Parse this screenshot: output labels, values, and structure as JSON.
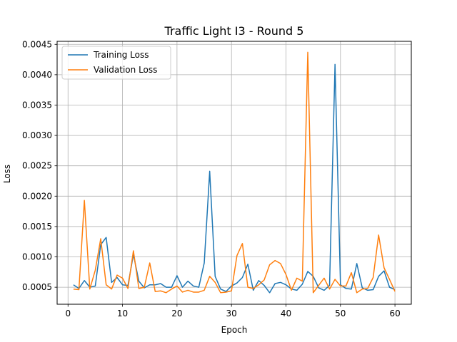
{
  "chart_data": {
    "type": "line",
    "title": "Traffic Light I3 - Round 5",
    "xlabel": "Epoch",
    "ylabel": "Loss",
    "xlim": [
      -2,
      63
    ],
    "ylim": [
      0.00022,
      0.00455
    ],
    "x_ticks": [
      0,
      10,
      20,
      30,
      40,
      50,
      60
    ],
    "y_ticks": [
      0.0005,
      0.001,
      0.0015,
      0.002,
      0.0025,
      0.003,
      0.0035,
      0.004,
      0.0045
    ],
    "y_tick_labels": [
      "0.0005",
      "0.0010",
      "0.0015",
      "0.0020",
      "0.0025",
      "0.0030",
      "0.0035",
      "0.0040",
      "0.0045"
    ],
    "grid": true,
    "legend_position": "top-left",
    "x": [
      1,
      2,
      3,
      4,
      5,
      6,
      7,
      8,
      9,
      10,
      11,
      12,
      13,
      14,
      15,
      16,
      17,
      18,
      19,
      20,
      21,
      22,
      23,
      24,
      25,
      26,
      27,
      28,
      29,
      30,
      31,
      32,
      33,
      34,
      35,
      36,
      37,
      38,
      39,
      40,
      41,
      42,
      43,
      44,
      45,
      46,
      47,
      48,
      49,
      50,
      51,
      52,
      53,
      54,
      55,
      56,
      57,
      58,
      59,
      60
    ],
    "series": [
      {
        "name": "Training Loss",
        "color": "#1f77b4",
        "values": [
          0.00054,
          0.00048,
          0.00061,
          0.0005,
          0.00052,
          0.0012,
          0.00132,
          0.00058,
          0.00066,
          0.00054,
          0.00053,
          0.00104,
          0.0006,
          0.00049,
          0.00054,
          0.00054,
          0.00056,
          0.0005,
          0.0005,
          0.00069,
          0.0005,
          0.0006,
          0.00052,
          0.0005,
          0.0009,
          0.00241,
          0.00068,
          0.00047,
          0.00043,
          0.00052,
          0.00057,
          0.00066,
          0.00088,
          0.00045,
          0.00061,
          0.00053,
          0.00041,
          0.00056,
          0.00058,
          0.00054,
          0.00047,
          0.00045,
          0.00055,
          0.00076,
          0.00068,
          0.00049,
          0.00045,
          0.00053,
          0.00417,
          0.00054,
          0.00048,
          0.00047,
          0.00089,
          0.00049,
          0.00045,
          0.00046,
          0.00068,
          0.00077,
          0.0005,
          0.00046
        ]
      },
      {
        "name": "Validation Loss",
        "color": "#ff7f0e",
        "values": [
          0.00047,
          0.00046,
          0.00193,
          0.00047,
          0.00078,
          0.0013,
          0.00054,
          0.00047,
          0.0007,
          0.00065,
          0.00048,
          0.0011,
          0.00048,
          0.0005,
          0.0009,
          0.00043,
          0.00044,
          0.00041,
          0.00047,
          0.00052,
          0.00042,
          0.00045,
          0.00042,
          0.00042,
          0.00045,
          0.00068,
          0.00058,
          0.00041,
          0.00042,
          0.00044,
          0.00102,
          0.00122,
          0.0005,
          0.00048,
          0.00054,
          0.00062,
          0.00087,
          0.00094,
          0.00089,
          0.00071,
          0.00045,
          0.00065,
          0.0006,
          0.00437,
          0.00041,
          0.00053,
          0.00065,
          0.00047,
          0.00063,
          0.00052,
          0.00052,
          0.00074,
          0.00041,
          0.00047,
          0.00048,
          0.00066,
          0.00136,
          0.00082,
          0.00063,
          0.00043
        ]
      }
    ]
  }
}
